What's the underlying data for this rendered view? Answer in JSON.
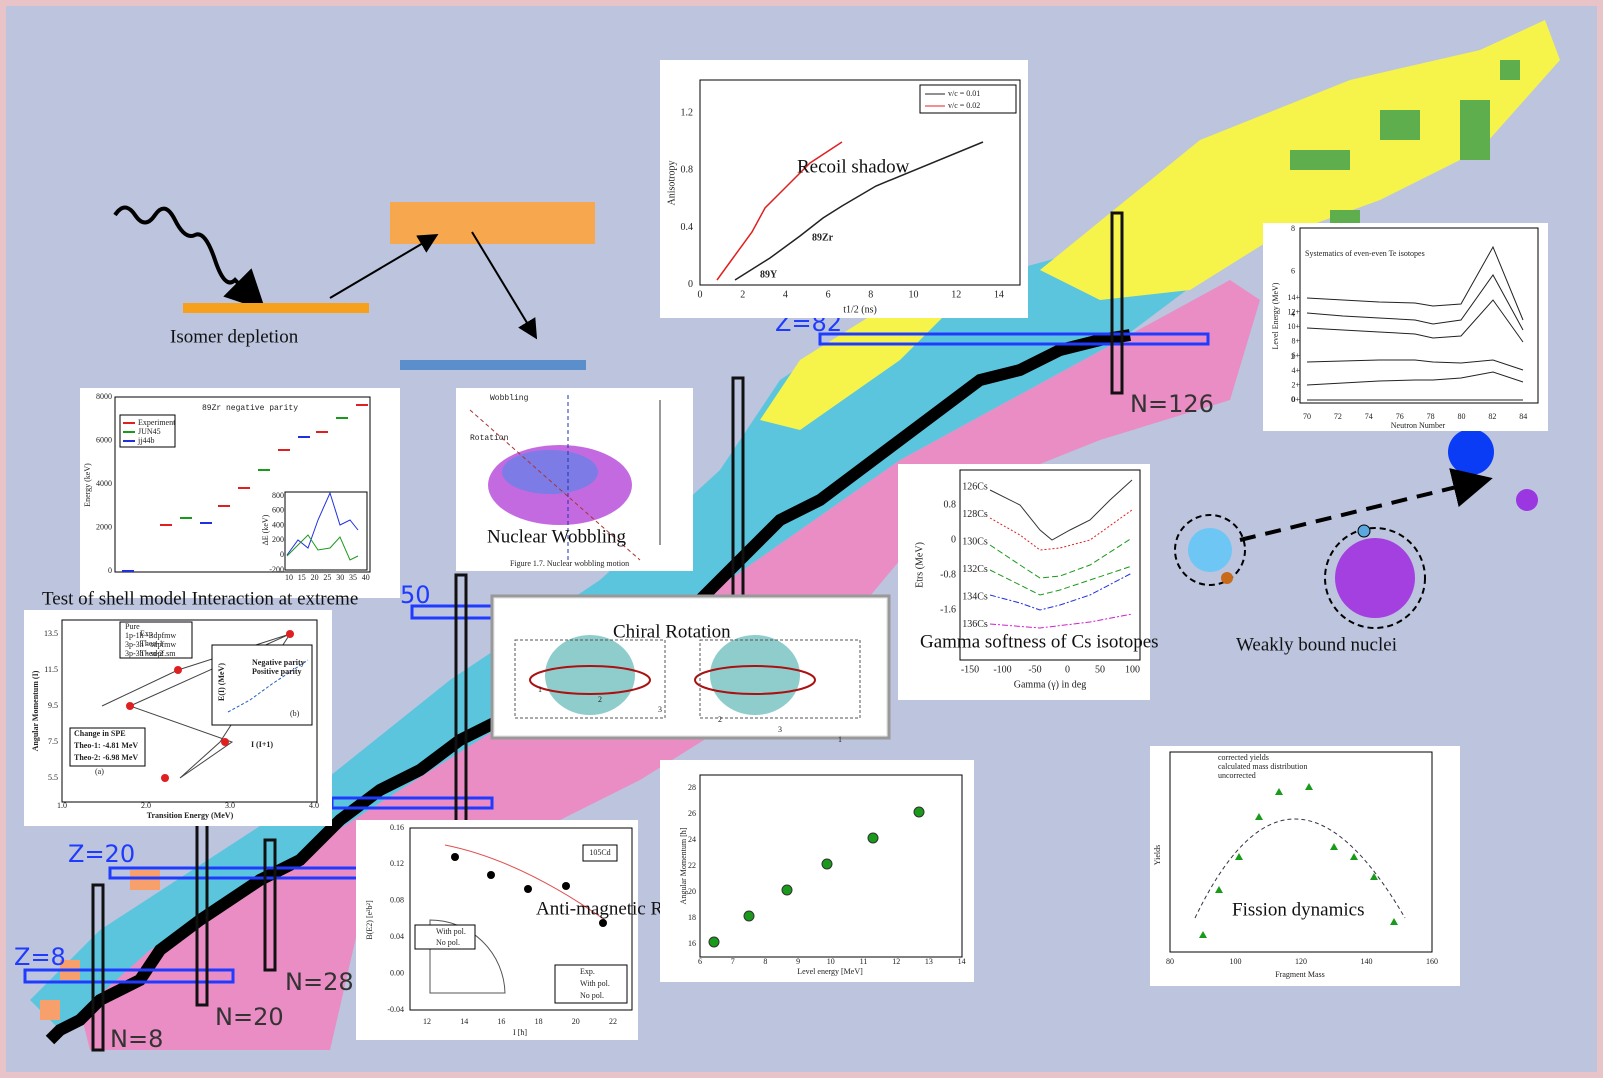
{
  "captions": {
    "isomer": "Isomer depletion",
    "recoil": "Recoil shadow",
    "wobbling": "Nuclear Wobbling",
    "shell": "Test of shell model Interaction at extreme",
    "chiral": "Chiral Rotation",
    "gamma": "Gamma softness of Cs isotopes",
    "weak": "Weakly bound nuclei",
    "amr": "Anti-magnetic Rotation",
    "fission": "Fission dynamics"
  },
  "magic_numbers": {
    "z8": "Z=8",
    "z20": "Z=20",
    "z50": "50",
    "z82": "Z=82",
    "n126": "N=126",
    "n28": "N=28",
    "n20": "N=20",
    "n8": "N=8"
  },
  "panels": {
    "recoil": {
      "ylabel": "Anisotropy",
      "xlabel": "t1/2 (ns)",
      "yticks": [
        "1.2",
        "0.8",
        "0.4",
        "0"
      ],
      "xticks": [
        "0",
        "2",
        "4",
        "6",
        "8",
        "10",
        "12",
        "14"
      ],
      "legend": [
        "v/c = 0.01",
        "v/c = 0.02"
      ],
      "labels": [
        "89Zr",
        "89Y"
      ]
    },
    "te": {
      "title": "Systematics of  even-even Te isotopes",
      "ylabel": "Level Energy (MeV)",
      "xlabel": "Neutron Number",
      "xticks": [
        "70",
        "72",
        "74",
        "76",
        "78",
        "80",
        "82",
        "84"
      ],
      "yticks": [
        "8",
        "6",
        "4",
        "2",
        "0"
      ],
      "spins": [
        "14+",
        "12+",
        "10+",
        "8+",
        "6+",
        "4+",
        "2+",
        "0+"
      ]
    },
    "zr": {
      "title": "89Zr negative parity",
      "ylabel": "Energy (keV)",
      "yticks": [
        "8000",
        "6000",
        "4000",
        "2000",
        "0"
      ],
      "legend": [
        "Experiment",
        "JUN45",
        "jj44b"
      ],
      "inset_ylabel": "ΔE (keV)",
      "inset_yticks": [
        "800",
        "600",
        "400",
        "200",
        "0",
        "-200"
      ],
      "inset_xticks": [
        "10",
        "15",
        "20",
        "25",
        "30",
        "35",
        "40"
      ]
    },
    "wobbling": {
      "labels": [
        "Wobbling",
        "Rotation"
      ],
      "caption": "Figure 1.7.   Nuclear wobbling motion"
    },
    "chiral": {
      "labels": [
        "1",
        "2",
        "3",
        "2",
        "3",
        "1"
      ]
    },
    "cs": {
      "ylabel": "Etrs (MeV)",
      "xlabel": "Gamma (γ) in deg",
      "yticks": [
        "0.8",
        "0",
        "-0.8",
        "-1.6"
      ],
      "xticks": [
        "-150",
        "-100",
        "-50",
        "0",
        "50",
        "100"
      ],
      "isotopes": [
        "126Cs",
        "128Cs",
        "130Cs",
        "132Cs",
        "134Cs",
        "136Cs"
      ]
    },
    "shell": {
      "ylabel": "Angular Momentum (I)",
      "xlabel": "Transition Energy (MeV)",
      "yticks": [
        "13.5",
        "11.5",
        "9.5",
        "7.5",
        "5.5"
      ],
      "xticks": [
        "1.0",
        "2.0",
        "3.0",
        "4.0"
      ],
      "legend": [
        "Exp",
        "Theo-1",
        "Theo-2"
      ],
      "pure": [
        "Pure",
        "1p-1h - sdpfmw",
        "3p-3h - sdpfmw",
        "3p-3h - sdpf.sm"
      ],
      "spe": [
        "Change in SPE",
        "Theo-1: -4.81 MeV",
        "Theo-2: -6.98 MeV"
      ],
      "parity": [
        "Negative parity",
        "Positive parity"
      ],
      "inset_ylabel": "E(I) (MeV)",
      "inset_xlabel": "I (I+1)",
      "tags": [
        "(a)",
        "(b)"
      ]
    },
    "amr": {
      "ylabel": "B(E2) [e²b²]",
      "xlabel": "I [ħ]",
      "yticks": [
        "0.16",
        "0.12",
        "0.08",
        "0.04",
        "0.00",
        "-0.04"
      ],
      "xticks": [
        "12",
        "14",
        "16",
        "18",
        "20",
        "22"
      ],
      "nucleus": "105Cd",
      "legend": [
        "Exp.",
        "With pol.",
        "No pol."
      ],
      "inset_legend": [
        "With pol.",
        "No pol."
      ]
    },
    "angmom": {
      "ylabel": "Angular Momentum [ħ]",
      "xlabel": "Level energy [MeV]",
      "yticks": [
        "28",
        "26",
        "24",
        "22",
        "20",
        "18",
        "16"
      ],
      "xticks": [
        "6",
        "7",
        "8",
        "9",
        "10",
        "11",
        "12",
        "13",
        "14"
      ]
    },
    "fission": {
      "ylabel": "Yields",
      "xlabel": "Fragment Mass",
      "xticks": [
        "80",
        "100",
        "120",
        "140",
        "160"
      ],
      "legend": [
        "corrected yields",
        "calculated mass distribution",
        "uncorrected"
      ]
    }
  }
}
